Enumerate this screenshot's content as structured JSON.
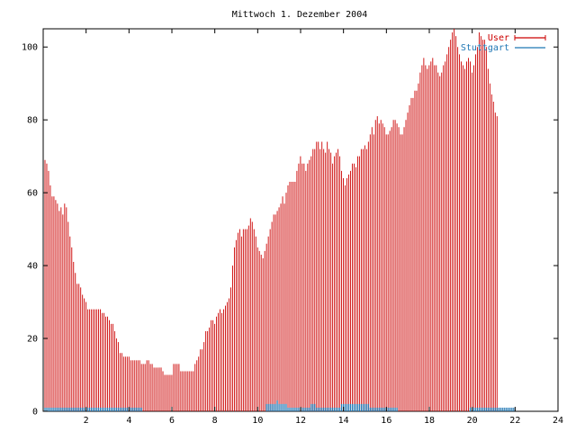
{
  "chart_data": {
    "type": "bar",
    "title": "Mittwoch 1. Dezember 2004",
    "xlabel": "",
    "ylabel": "",
    "xlim": [
      0,
      24
    ],
    "ylim": [
      0,
      105
    ],
    "xticks": [
      2,
      4,
      6,
      8,
      10,
      12,
      14,
      16,
      18,
      20,
      22,
      24
    ],
    "xtick_labels": [
      "2",
      "4",
      "6",
      "8",
      "10",
      "12",
      "14",
      "16",
      "18",
      "20",
      "22",
      "24"
    ],
    "yticks": [
      0,
      20,
      40,
      60,
      80,
      100
    ],
    "ytick_labels": [
      "0",
      "20",
      "40",
      "60",
      "80",
      "100"
    ],
    "grid": false,
    "legend_position": "top-right",
    "x_step": 0.0833,
    "series": [
      {
        "name": "User",
        "color": "#cc0000",
        "style": "impulses",
        "values": [
          69,
          68,
          66,
          62,
          59,
          59,
          58,
          57,
          55,
          56,
          54,
          57,
          56,
          52,
          48,
          45,
          41,
          38,
          35,
          35,
          34,
          32,
          31,
          30,
          28,
          28,
          28,
          28,
          28,
          28,
          28,
          28,
          27,
          27,
          26,
          26,
          25,
          24,
          24,
          22,
          20,
          19,
          16,
          16,
          15,
          15,
          15,
          15,
          14,
          14,
          14,
          14,
          14,
          14,
          13,
          13,
          13,
          14,
          14,
          13,
          13,
          12,
          12,
          12,
          12,
          12,
          11,
          10,
          10,
          10,
          10,
          10,
          13,
          13,
          13,
          13,
          11,
          11,
          11,
          11,
          11,
          11,
          11,
          11,
          13,
          14,
          15,
          17,
          17,
          19,
          22,
          22,
          23,
          25,
          25,
          24,
          26,
          27,
          28,
          27,
          28,
          29,
          30,
          31,
          34,
          40,
          45,
          47,
          49,
          50,
          48,
          50,
          50,
          50,
          51,
          53,
          52,
          50,
          48,
          45,
          44,
          43,
          42,
          44,
          46,
          48,
          50,
          52,
          54,
          54,
          55,
          56,
          57,
          59,
          57,
          60,
          62,
          63,
          63,
          63,
          63,
          66,
          68,
          70,
          68,
          68,
          66,
          68,
          69,
          70,
          72,
          72,
          74,
          74,
          72,
          74,
          72,
          71,
          74,
          72,
          71,
          68,
          70,
          71,
          72,
          70,
          66,
          64,
          62,
          64,
          65,
          66,
          68,
          68,
          67,
          70,
          70,
          72,
          72,
          73,
          72,
          74,
          76,
          78,
          76,
          80,
          81,
          79,
          80,
          79,
          78,
          76,
          76,
          77,
          78,
          80,
          80,
          79,
          78,
          76,
          76,
          78,
          80,
          82,
          84,
          86,
          86,
          88,
          88,
          90,
          93,
          95,
          97,
          95,
          94,
          95,
          96,
          97,
          95,
          95,
          93,
          92,
          93,
          95,
          96,
          98,
          100,
          102,
          104,
          105,
          103,
          100,
          98,
          96,
          95,
          94,
          96,
          97,
          96,
          93,
          95,
          98,
          100,
          104,
          103,
          102,
          102,
          100,
          94,
          90,
          87,
          85,
          82,
          81
        ]
      },
      {
        "name": "Stuttgart",
        "color": "#1f77b4",
        "style": "impulses",
        "values": [
          1,
          1,
          1,
          1,
          1,
          1,
          1,
          1,
          1,
          1,
          1,
          1,
          1,
          1,
          1,
          1,
          1,
          1,
          1,
          1,
          1,
          1,
          1,
          1,
          1,
          1,
          1,
          1,
          1,
          1,
          1,
          1,
          1,
          1,
          1,
          1,
          1,
          1,
          1,
          1,
          1,
          1,
          1,
          1,
          1,
          1,
          1,
          1,
          1,
          1,
          1,
          1,
          1,
          1,
          1,
          0,
          0,
          0,
          0,
          0,
          0,
          0,
          0,
          0,
          0,
          0,
          0,
          0,
          0,
          0,
          0,
          0,
          0,
          0,
          0,
          0,
          0,
          0,
          0,
          0,
          0,
          0,
          0,
          0,
          0,
          0,
          0,
          0,
          0,
          0,
          0,
          0,
          0,
          0,
          0,
          0,
          0,
          0,
          0,
          0,
          0,
          0,
          0,
          0,
          0,
          0,
          0,
          0,
          0,
          0,
          0,
          0,
          0,
          0,
          0,
          0,
          0,
          0,
          0,
          0,
          0,
          0,
          0,
          0,
          2,
          2,
          2,
          2,
          2,
          2,
          3,
          2,
          2,
          2,
          2,
          2,
          1,
          1,
          1,
          1,
          1,
          1,
          1,
          1,
          1,
          1,
          1,
          1,
          1,
          2,
          2,
          2,
          1,
          1,
          1,
          1,
          1,
          1,
          1,
          1,
          1,
          1,
          1,
          1,
          1,
          1,
          2,
          2,
          2,
          2,
          2,
          2,
          2,
          2,
          2,
          2,
          2,
          2,
          2,
          2,
          2,
          2,
          1,
          1,
          1,
          1,
          1,
          1,
          1,
          1,
          1,
          1,
          1,
          1,
          1,
          1,
          1,
          1,
          0,
          0,
          0,
          0,
          0,
          0,
          0,
          0,
          0,
          0,
          0,
          0,
          0,
          0,
          0,
          0,
          0,
          0,
          0,
          0,
          0,
          0,
          0,
          0,
          0,
          0,
          0,
          0,
          0,
          0,
          0,
          0,
          0,
          0,
          0,
          0,
          0,
          0,
          0,
          0,
          1,
          1,
          1,
          1,
          1,
          1,
          1,
          1,
          1,
          1,
          1,
          1,
          1,
          1,
          1,
          1,
          1,
          1,
          1,
          1,
          1,
          1,
          1,
          1,
          1,
          1
        ]
      }
    ]
  }
}
